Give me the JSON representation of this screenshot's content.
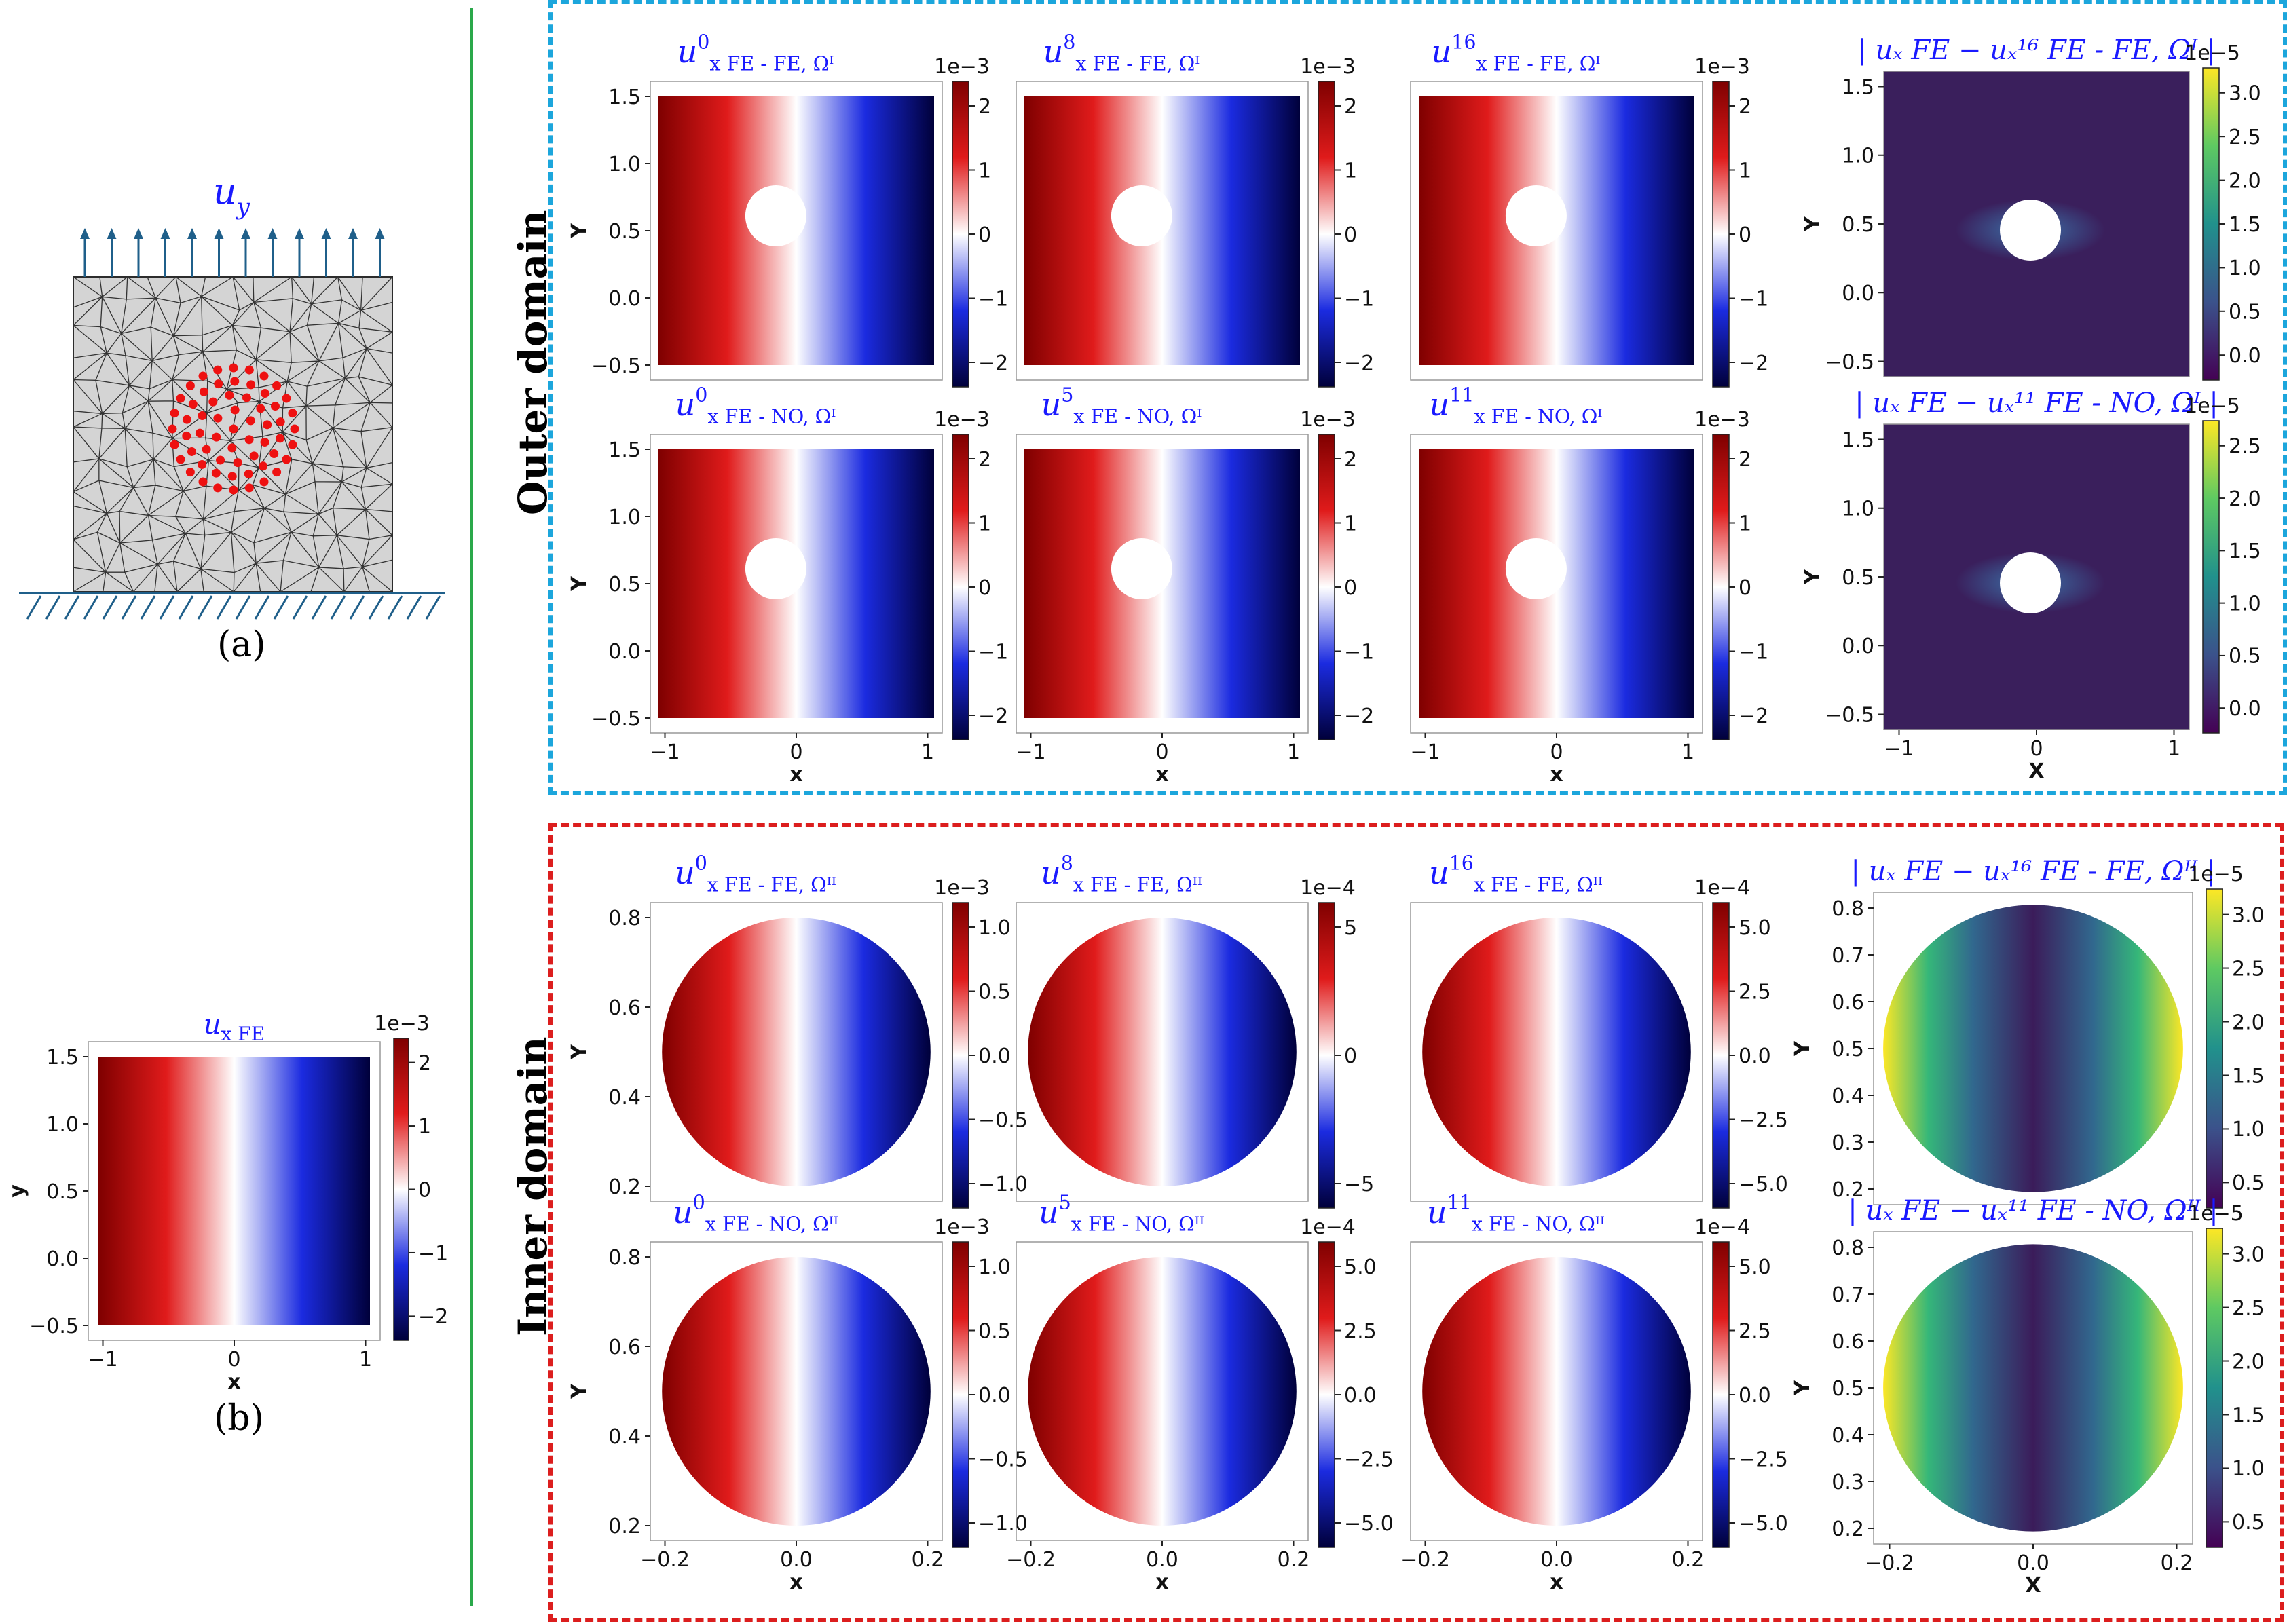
{
  "colors": {
    "outer_box": "#1ca6dc",
    "inner_box": "#dc1e1e",
    "divider": "#2aa84a",
    "title_blue": "#1a1aff",
    "point_red": "#ee1111",
    "arrow_blue": "#1f5f8a"
  },
  "labels": {
    "outer_domain": "Outer domain",
    "inner_domain": "Inner domain",
    "caption_a": "(a)",
    "caption_b": "(b)",
    "load_symbol": "u",
    "load_subscript": "y"
  },
  "panel_b": {
    "title_main": "u",
    "title_sub": "x FE",
    "multiplier": "1e−3",
    "ylabel": "y",
    "xlabel": "x",
    "yticks": [
      "1.5",
      "1.0",
      "0.5",
      "0.0",
      "−0.5"
    ],
    "xticks": [
      "−1",
      "0",
      "1"
    ],
    "cticks": [
      "2",
      "1",
      "0",
      "−1",
      "−2"
    ]
  },
  "outer_rows": [
    {
      "panels": [
        {
          "sup": "0",
          "sub": "x FE - FE, Ωᴵ",
          "mult": "1e−3",
          "cticks": [
            "2",
            "1",
            "0",
            "−1",
            "−2"
          ]
        },
        {
          "sup": "8",
          "sub": "x FE - FE, Ωᴵ",
          "mult": "1e−3",
          "cticks": [
            "2",
            "1",
            "0",
            "−1",
            "−2"
          ]
        },
        {
          "sup": "16",
          "sub": "x  FE - FE, Ωᴵ",
          "mult": "1e−3",
          "cticks": [
            "2",
            "1",
            "0",
            "−1",
            "−2"
          ]
        }
      ],
      "error": {
        "title": "| uₓ FE − uₓ¹⁶ FE - FE, Ωᴵ |",
        "mult": "1e−5",
        "cticks": [
          "3.0",
          "2.5",
          "2.0",
          "1.5",
          "1.0",
          "0.5",
          "0.0"
        ]
      }
    },
    {
      "panels": [
        {
          "sup": "0",
          "sub": "x FE - NO, Ωᴵ",
          "mult": "1e−3",
          "cticks": [
            "2",
            "1",
            "0",
            "−1",
            "−2"
          ]
        },
        {
          "sup": "5",
          "sub": "x FE - NO, Ωᴵ",
          "mult": "1e−3",
          "cticks": [
            "2",
            "1",
            "0",
            "−1",
            "−2"
          ]
        },
        {
          "sup": "11",
          "sub": "x  FE - NO, Ωᴵ",
          "mult": "1e−3",
          "cticks": [
            "2",
            "1",
            "0",
            "−1",
            "−2"
          ]
        }
      ],
      "error": {
        "title": "| uₓ FE − uₓ¹¹ FE - NO, Ωᴵ |",
        "mult": "1e−5",
        "cticks": [
          "2.5",
          "2.0",
          "1.5",
          "1.0",
          "0.5",
          "0.0"
        ]
      }
    }
  ],
  "inner_rows": [
    {
      "panels": [
        {
          "sup": "0",
          "sub": "x FE - FE, Ωᴵᴵ",
          "mult": "1e−3",
          "cticks": [
            "1.0",
            "0.5",
            "0.0",
            "−0.5",
            "−1.0"
          ]
        },
        {
          "sup": "8",
          "sub": "x FE - FE, Ωᴵᴵ",
          "mult": "1e−4",
          "cticks": [
            "5",
            "0",
            "−5"
          ]
        },
        {
          "sup": "16",
          "sub": "x  FE - FE, Ωᴵᴵ",
          "mult": "1e−4",
          "cticks": [
            "5.0",
            "2.5",
            "0.0",
            "−2.5",
            "−5.0"
          ]
        }
      ],
      "error": {
        "title": "| uₓ FE − uₓ¹⁶ FE - FE, Ωᴵᴵ |",
        "mult": "1e−5",
        "cticks": [
          "3.0",
          "2.5",
          "2.0",
          "1.5",
          "1.0",
          "0.5"
        ]
      }
    },
    {
      "panels": [
        {
          "sup": "0",
          "sub": "x FE - NO, Ωᴵᴵ",
          "mult": "1e−3",
          "cticks": [
            "1.0",
            "0.5",
            "0.0",
            "−0.5",
            "−1.0"
          ]
        },
        {
          "sup": "5",
          "sub": "x FE - NO, Ωᴵᴵ",
          "mult": "1e−4",
          "cticks": [
            "5.0",
            "2.5",
            "0.0",
            "−2.5",
            "−5.0"
          ]
        },
        {
          "sup": "11",
          "sub": "x  FE - NO, Ωᴵᴵ",
          "mult": "1e−4",
          "cticks": [
            "5.0",
            "2.5",
            "0.0",
            "−2.5",
            "−5.0"
          ]
        }
      ],
      "error": {
        "title": "| uₓ FE − uₓ¹¹ FE - NO, Ωᴵᴵ |",
        "mult": "1e−5",
        "cticks": [
          "3.0",
          "2.5",
          "2.0",
          "1.5",
          "1.0",
          "0.5"
        ]
      }
    }
  ],
  "outer_axes": {
    "yticks": [
      "1.5",
      "1.0",
      "0.5",
      "0.0",
      "−0.5"
    ],
    "xticks": [
      "−1",
      "0",
      "1"
    ],
    "ylabel": "Y",
    "xlabel": "x",
    "err_xlabel": "X"
  },
  "inner_axes": {
    "yticks": [
      "0.8",
      "0.6",
      "0.4",
      "0.2"
    ],
    "err_yticks": [
      "0.8",
      "0.7",
      "0.6",
      "0.5",
      "0.4",
      "0.3",
      "0.2"
    ],
    "xticks": [
      "−0.2",
      "0.0",
      "0.2"
    ],
    "ylabel": "Y",
    "xlabel": "x",
    "err_xlabel": "X"
  }
}
